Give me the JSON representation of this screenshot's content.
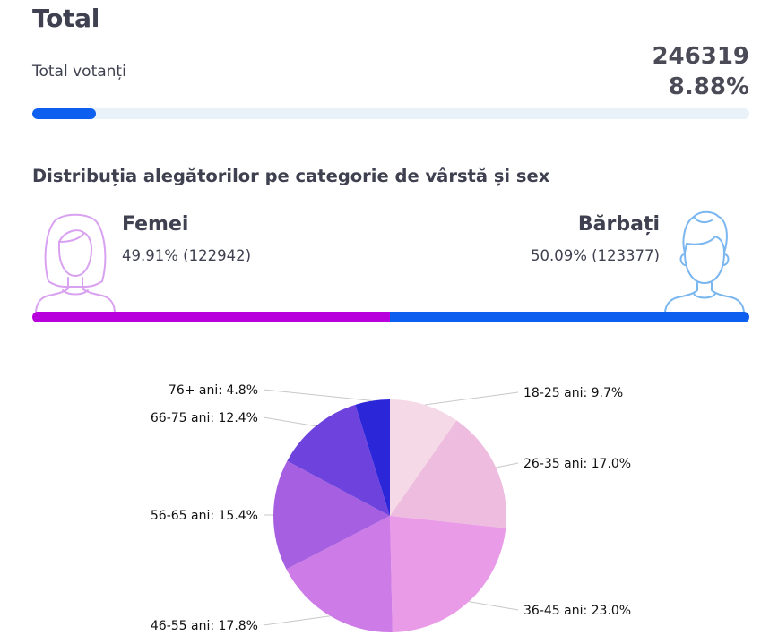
{
  "header": {
    "title": "Total",
    "voters_label": "Total votanți",
    "voters_count": "246319",
    "voters_pct": "8.88%",
    "progress_fraction": 0.0888
  },
  "distribution": {
    "title": "Distribuția alegătorilor pe categorie de vârstă și sex",
    "female": {
      "label": "Femei",
      "stat": "49.91% (122942)",
      "share": 49.91,
      "color": "#b800dc",
      "avatar_icon": "woman-avatar-icon"
    },
    "male": {
      "label": "Bărbați",
      "stat": "50.09% (123377)",
      "share": 50.09,
      "color": "#0d5ff0",
      "avatar_icon": "man-avatar-icon"
    }
  },
  "colors": {
    "progress_track": "#e9f1f9",
    "progress_fill": "#0d5ff0"
  },
  "chart_data": {
    "type": "pie",
    "categories": [
      "18-25 ani",
      "26-35 ani",
      "36-45 ani",
      "46-55 ani",
      "56-65 ani",
      "66-75 ani",
      "76+ ani"
    ],
    "values": [
      9.7,
      17.0,
      23.0,
      17.8,
      15.4,
      12.4,
      4.8
    ],
    "labels": [
      "18-25 ani: 9.7%",
      "26-35 ani: 17.0%",
      "36-45 ani: 23.0%",
      "46-55 ani: 17.8%",
      "56-65 ani: 15.4%",
      "66-75 ani: 12.4%",
      "76+ ani: 4.8%"
    ],
    "colors": [
      "#f5d9e6",
      "#eebcdf",
      "#e99be7",
      "#cd7be6",
      "#a65fe0",
      "#6d42dd",
      "#2c26d9"
    ],
    "start": "12 o'clock, clockwise"
  }
}
